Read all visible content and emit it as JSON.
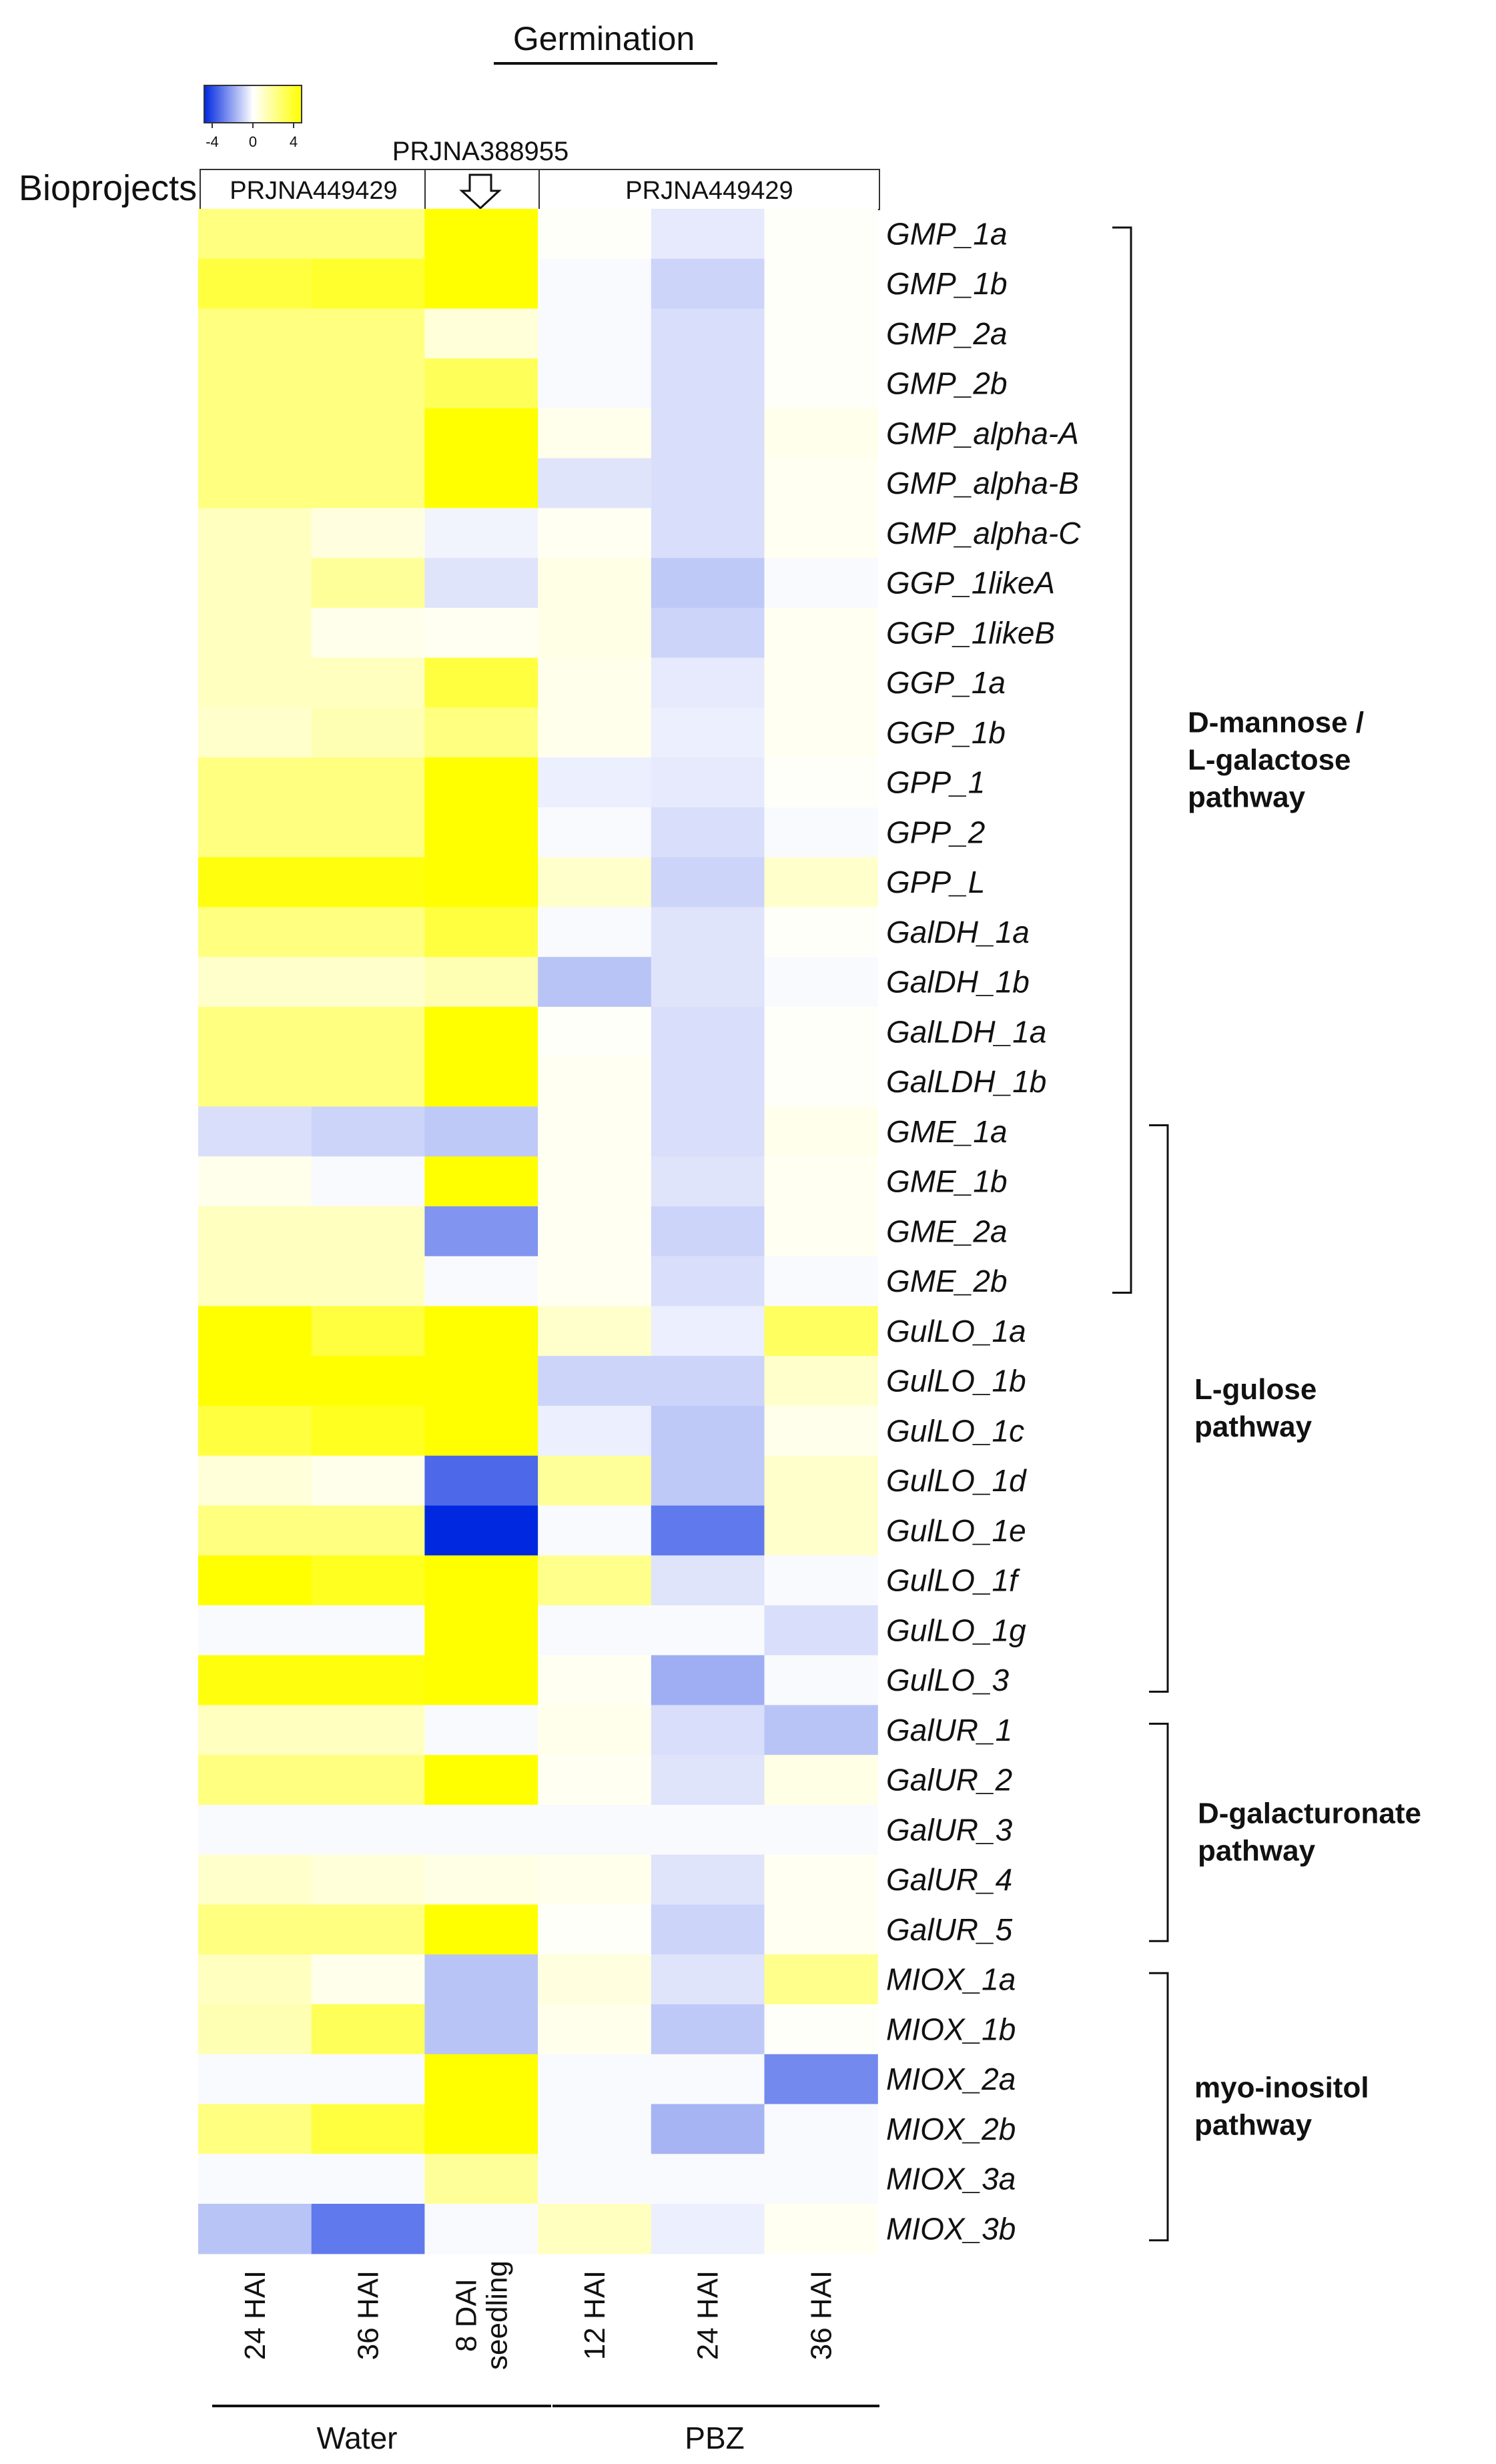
{
  "chart_data": {
    "type": "heatmap",
    "title": "Germination",
    "legend": {
      "tick_labels": [
        "-4",
        "0",
        "4"
      ],
      "range": [
        -4,
        4
      ],
      "colors": {
        "low": "#0028e0",
        "mid": "#ffffff",
        "high": "#ffff00"
      }
    },
    "bioprojects": {
      "label": "Bioprojects",
      "left_project": "PRJNA449429",
      "arrow_project": "PRJNA388955",
      "right_project": "PRJNA449429"
    },
    "columns": [
      {
        "label": "24 HAI",
        "lines": [
          "24 HAI"
        ]
      },
      {
        "label": "36 HAI",
        "lines": [
          "36 HAI"
        ]
      },
      {
        "label": "8 DAI seedling",
        "lines": [
          "8 DAI",
          "seedling"
        ]
      },
      {
        "label": "12 HAI",
        "lines": [
          "12 HAI"
        ]
      },
      {
        "label": "24 HAI",
        "lines": [
          "24 HAI"
        ]
      },
      {
        "label": "36 HAI",
        "lines": [
          "36 HAI"
        ]
      }
    ],
    "groups": [
      {
        "label": "Water",
        "columns": [
          0,
          1,
          2
        ]
      },
      {
        "label": "PBZ",
        "columns": [
          3,
          4,
          5
        ]
      }
    ],
    "rows": [
      "GMP_1a",
      "GMP_1b",
      "GMP_2a",
      "GMP_2b",
      "GMP_alpha-A",
      "GMP_alpha-B",
      "GMP_alpha-C",
      "GGP_1likeA",
      "GGP_1likeB",
      "GGP_1a",
      "GGP_1b",
      "GPP_1",
      "GPP_2",
      "GPP_L",
      "GalDH_1a",
      "GalDH_1b",
      "GalLDH_1a",
      "GalLDH_1b",
      "GME_1a",
      "GME_1b",
      "GME_2a",
      "GME_2b",
      "GulLO_1a",
      "GulLO_1b",
      "GulLO_1c",
      "GulLO_1d",
      "GulLO_1e",
      "GulLO_1f",
      "GulLO_1g",
      "GulLO_3",
      "GalUR_1",
      "GalUR_2",
      "GalUR_3",
      "GalUR_4",
      "GalUR_5",
      "MIOX_1a",
      "MIOX_1b",
      "MIOX_2a",
      "MIOX_2b",
      "MIOX_3a",
      "MIOX_3b"
    ],
    "values": [
      [
        2.0,
        2.0,
        4.0,
        0.1,
        -0.4,
        0.1
      ],
      [
        3.0,
        3.3,
        4.0,
        -0.1,
        -0.8,
        0.1
      ],
      [
        2.0,
        2.0,
        0.6,
        -0.1,
        -0.6,
        0.1
      ],
      [
        2.0,
        2.0,
        2.6,
        -0.1,
        -0.6,
        0.1
      ],
      [
        2.0,
        2.0,
        4.0,
        0.3,
        -0.6,
        0.3
      ],
      [
        2.0,
        2.0,
        4.0,
        -0.5,
        -0.6,
        0.2
      ],
      [
        1.0,
        0.5,
        -0.2,
        0.2,
        -0.6,
        0.2
      ],
      [
        1.0,
        1.6,
        -0.5,
        0.4,
        -1.0,
        -0.1
      ],
      [
        1.0,
        0.3,
        0.2,
        0.4,
        -0.8,
        0.2
      ],
      [
        1.0,
        1.0,
        3.0,
        0.3,
        -0.4,
        0.2
      ],
      [
        0.8,
        1.2,
        2.0,
        0.3,
        -0.3,
        0.2
      ],
      [
        2.0,
        2.0,
        4.0,
        -0.3,
        -0.4,
        0.1
      ],
      [
        2.0,
        2.0,
        4.0,
        -0.1,
        -0.6,
        -0.1
      ],
      [
        3.8,
        3.8,
        4.0,
        0.8,
        -0.8,
        0.8
      ],
      [
        2.0,
        2.0,
        3.0,
        -0.1,
        -0.5,
        0.1
      ],
      [
        0.8,
        0.8,
        1.2,
        -1.1,
        -0.5,
        -0.1
      ],
      [
        2.0,
        2.0,
        4.0,
        0.1,
        -0.6,
        0.1
      ],
      [
        2.0,
        2.0,
        4.0,
        0.2,
        -0.6,
        0.1
      ],
      [
        -0.6,
        -0.8,
        -1.0,
        0.2,
        -0.6,
        0.3
      ],
      [
        0.3,
        -0.1,
        4.0,
        0.2,
        -0.5,
        0.2
      ],
      [
        1.0,
        1.0,
        -2.0,
        0.2,
        -0.8,
        0.2
      ],
      [
        1.0,
        1.0,
        -0.1,
        0.2,
        -0.6,
        -0.1
      ],
      [
        4.0,
        3.0,
        4.0,
        0.8,
        -0.3,
        2.5
      ],
      [
        4.0,
        4.0,
        4.0,
        -0.8,
        -0.8,
        0.8
      ],
      [
        3.0,
        3.5,
        4.0,
        -0.3,
        -1.0,
        0.3
      ],
      [
        0.6,
        0.3,
        -2.8,
        1.6,
        -1.0,
        0.8
      ],
      [
        2.0,
        2.0,
        -4.0,
        -0.1,
        -2.5,
        0.8
      ],
      [
        4.0,
        3.5,
        4.0,
        1.8,
        -0.5,
        -0.1
      ],
      [
        -0.1,
        -0.1,
        4.0,
        -0.1,
        -0.1,
        -0.6
      ],
      [
        3.8,
        3.8,
        4.0,
        0.2,
        -1.5,
        -0.1
      ],
      [
        1.0,
        1.0,
        -0.1,
        0.3,
        -0.6,
        -1.1
      ],
      [
        2.0,
        2.0,
        4.0,
        0.2,
        -0.5,
        0.4
      ],
      [
        -0.1,
        -0.1,
        -0.1,
        -0.1,
        -0.1,
        -0.1
      ],
      [
        0.8,
        0.6,
        0.4,
        0.3,
        -0.5,
        0.2
      ],
      [
        2.0,
        2.0,
        4.0,
        0.1,
        -0.8,
        0.2
      ],
      [
        1.0,
        0.3,
        -1.1,
        0.5,
        -0.5,
        1.8
      ],
      [
        1.2,
        2.6,
        -1.1,
        0.3,
        -1.0,
        0.1
      ],
      [
        -0.1,
        -0.1,
        4.0,
        -0.1,
        -0.1,
        -2.2
      ],
      [
        2.0,
        3.0,
        4.0,
        -0.1,
        -1.4,
        -0.1
      ],
      [
        -0.1,
        -0.1,
        1.6,
        -0.1,
        -0.1,
        -0.1
      ],
      [
        -1.1,
        -2.5,
        -0.1,
        1.0,
        -0.3,
        0.2
      ]
    ],
    "pathways": [
      {
        "label": "D-mannose / L-galactose pathway",
        "lines": [
          "D-mannose /",
          "L-galactose",
          "pathway"
        ],
        "from": "GMP_1a",
        "to": "GME_2b"
      },
      {
        "label": "L-gulose pathway",
        "lines": [
          "L-gulose",
          "pathway"
        ],
        "from": "GME_1a",
        "to": "GulLO_3"
      },
      {
        "label": "D-galacturonate pathway",
        "lines": [
          "D-galacturonate",
          "pathway"
        ],
        "from": "GalUR_1",
        "to": "GalUR_5"
      },
      {
        "label": "myo-inositol pathway",
        "lines": [
          "myo-inositol",
          "pathway"
        ],
        "from": "MIOX_1a",
        "to": "MIOX_3b"
      }
    ]
  }
}
